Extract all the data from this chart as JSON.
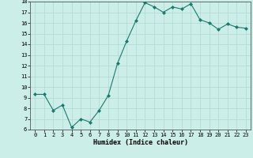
{
  "x": [
    0,
    1,
    2,
    3,
    4,
    5,
    6,
    7,
    8,
    9,
    10,
    11,
    12,
    13,
    14,
    15,
    16,
    17,
    18,
    19,
    20,
    21,
    22,
    23
  ],
  "y": [
    9.3,
    9.3,
    7.8,
    8.3,
    6.2,
    7.0,
    6.7,
    7.8,
    9.2,
    12.2,
    14.3,
    16.2,
    17.9,
    17.5,
    17.0,
    17.5,
    17.3,
    17.8,
    16.3,
    16.0,
    15.4,
    15.9,
    15.6,
    15.5
  ],
  "line_color": "#1a7a6e",
  "marker_color": "#1a7a6e",
  "bg_color": "#cceee8",
  "grid_color": "#b0d8d4",
  "xlabel": "Humidex (Indice chaleur)",
  "ylim": [
    6,
    18
  ],
  "xlim": [
    -0.5,
    23.5
  ],
  "yticks": [
    6,
    7,
    8,
    9,
    10,
    11,
    12,
    13,
    14,
    15,
    16,
    17,
    18
  ],
  "xticks": [
    0,
    1,
    2,
    3,
    4,
    5,
    6,
    7,
    8,
    9,
    10,
    11,
    12,
    13,
    14,
    15,
    16,
    17,
    18,
    19,
    20,
    21,
    22,
    23
  ],
  "tick_fontsize": 5.0,
  "xlabel_fontsize": 6.0
}
